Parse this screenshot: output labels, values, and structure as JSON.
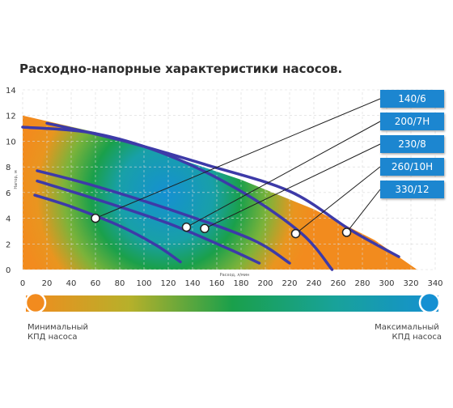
{
  "chart_data": {
    "type": "line",
    "title": "Расходно-напорные характеристики насосов.",
    "xlabel": "Расход, л/мин",
    "ylabel": "Напор, м",
    "xlim": [
      0,
      340
    ],
    "ylim": [
      0,
      14
    ],
    "x_ticks": [
      "0",
      "20",
      "40",
      "60",
      "80",
      "100",
      "120",
      "140",
      "160",
      "180",
      "200",
      "220",
      "240",
      "260",
      "280",
      "300",
      "320",
      "340"
    ],
    "y_ticks": [
      "0",
      "2",
      "4",
      "6",
      "8",
      "10",
      "12",
      "14"
    ],
    "grid": true,
    "legend_position": "top-right",
    "colors": {
      "curve": "#3d3aa8",
      "labelbox": "#1a86d0",
      "low_efficiency": "#f28b1e",
      "mid_efficiency": "#1aa04b",
      "high_efficiency": "#1590d2"
    },
    "series": [
      {
        "name": "140/6",
        "points": [
          [
            10,
            5.8
          ],
          [
            40,
            4.9
          ],
          [
            80,
            3.4
          ],
          [
            110,
            1.9
          ],
          [
            130,
            0.6
          ]
        ]
      },
      {
        "name": "200/7H",
        "points": [
          [
            12,
            6.9
          ],
          [
            60,
            5.5
          ],
          [
            120,
            3.6
          ],
          [
            170,
            1.6
          ],
          [
            195,
            0.5
          ]
        ]
      },
      {
        "name": "230/8",
        "points": [
          [
            12,
            7.7
          ],
          [
            60,
            6.5
          ],
          [
            130,
            4.4
          ],
          [
            190,
            2.3
          ],
          [
            220,
            0.5
          ]
        ]
      },
      {
        "name": "260/10H",
        "points": [
          [
            0,
            11.1
          ],
          [
            60,
            10.6
          ],
          [
            120,
            8.9
          ],
          [
            180,
            6.1
          ],
          [
            230,
            2.8
          ],
          [
            255,
            0
          ]
        ]
      },
      {
        "name": "330/12",
        "points": [
          [
            20,
            11.4
          ],
          [
            80,
            10.1
          ],
          [
            150,
            8.2
          ],
          [
            220,
            6.1
          ],
          [
            270,
            3.1
          ],
          [
            310,
            1.0
          ]
        ]
      }
    ],
    "annotations": [
      {
        "series": "140/6",
        "x": 60,
        "y": 4.0
      },
      {
        "series": "200/7H",
        "x": 135,
        "y": 3.3
      },
      {
        "series": "230/8",
        "x": 150,
        "y": 3.2
      },
      {
        "series": "260/10H",
        "x": 225,
        "y": 2.8
      },
      {
        "series": "330/12",
        "x": 267,
        "y": 2.9
      }
    ],
    "efficiency_scale": {
      "left_label": "Минимальный КПД насоса",
      "right_label": "Максимальный КПД насоса"
    }
  }
}
